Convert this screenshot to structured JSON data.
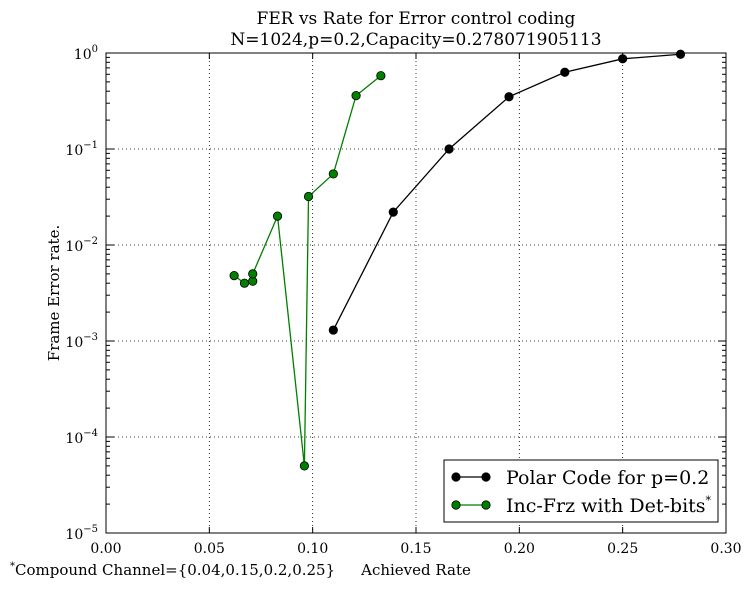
{
  "chart_data": {
    "type": "line",
    "title": "FER vs Rate for Error control coding",
    "subtitle": "N=1024,p=0.2,Capacity=0.278071905113",
    "xlabel": "Achieved Rate",
    "ylabel": "Frame Error rate.",
    "xlim": [
      0.0,
      0.3
    ],
    "ylim_log10": [
      -5,
      0
    ],
    "y_scale": "log",
    "x_ticks": [
      "0.00",
      "0.05",
      "0.10",
      "0.15",
      "0.20",
      "0.25",
      "0.30"
    ],
    "y_ticks": [
      {
        "base": "10",
        "exp": "0"
      },
      {
        "base": "10",
        "exp": "−1"
      },
      {
        "base": "10",
        "exp": "−2"
      },
      {
        "base": "10",
        "exp": "−3"
      },
      {
        "base": "10",
        "exp": "−4"
      },
      {
        "base": "10",
        "exp": "−5"
      }
    ],
    "grid": true,
    "legend_placement": "bottom-right",
    "footnote_mark": "*",
    "footnote": "Compound Channel={0.04,0.15,0.2,0.25}",
    "series": [
      {
        "name": "Polar Code for p=0.2",
        "name_sup": "",
        "color": "#000000",
        "x": [
          0.11,
          0.139,
          0.166,
          0.195,
          0.222,
          0.25,
          0.278
        ],
        "y": [
          0.0013,
          0.022,
          0.1,
          0.35,
          0.63,
          0.87,
          0.97
        ]
      },
      {
        "name": "Inc-Frz with Det-bits",
        "name_sup": "*",
        "color": "#007f00",
        "x": [
          0.062,
          0.067,
          0.071,
          0.071,
          0.083,
          0.096,
          0.098,
          0.11,
          0.121,
          0.133
        ],
        "y": [
          0.0048,
          0.004,
          0.0042,
          0.005,
          0.02,
          5e-05,
          0.032,
          0.055,
          0.36,
          0.58
        ]
      }
    ]
  }
}
